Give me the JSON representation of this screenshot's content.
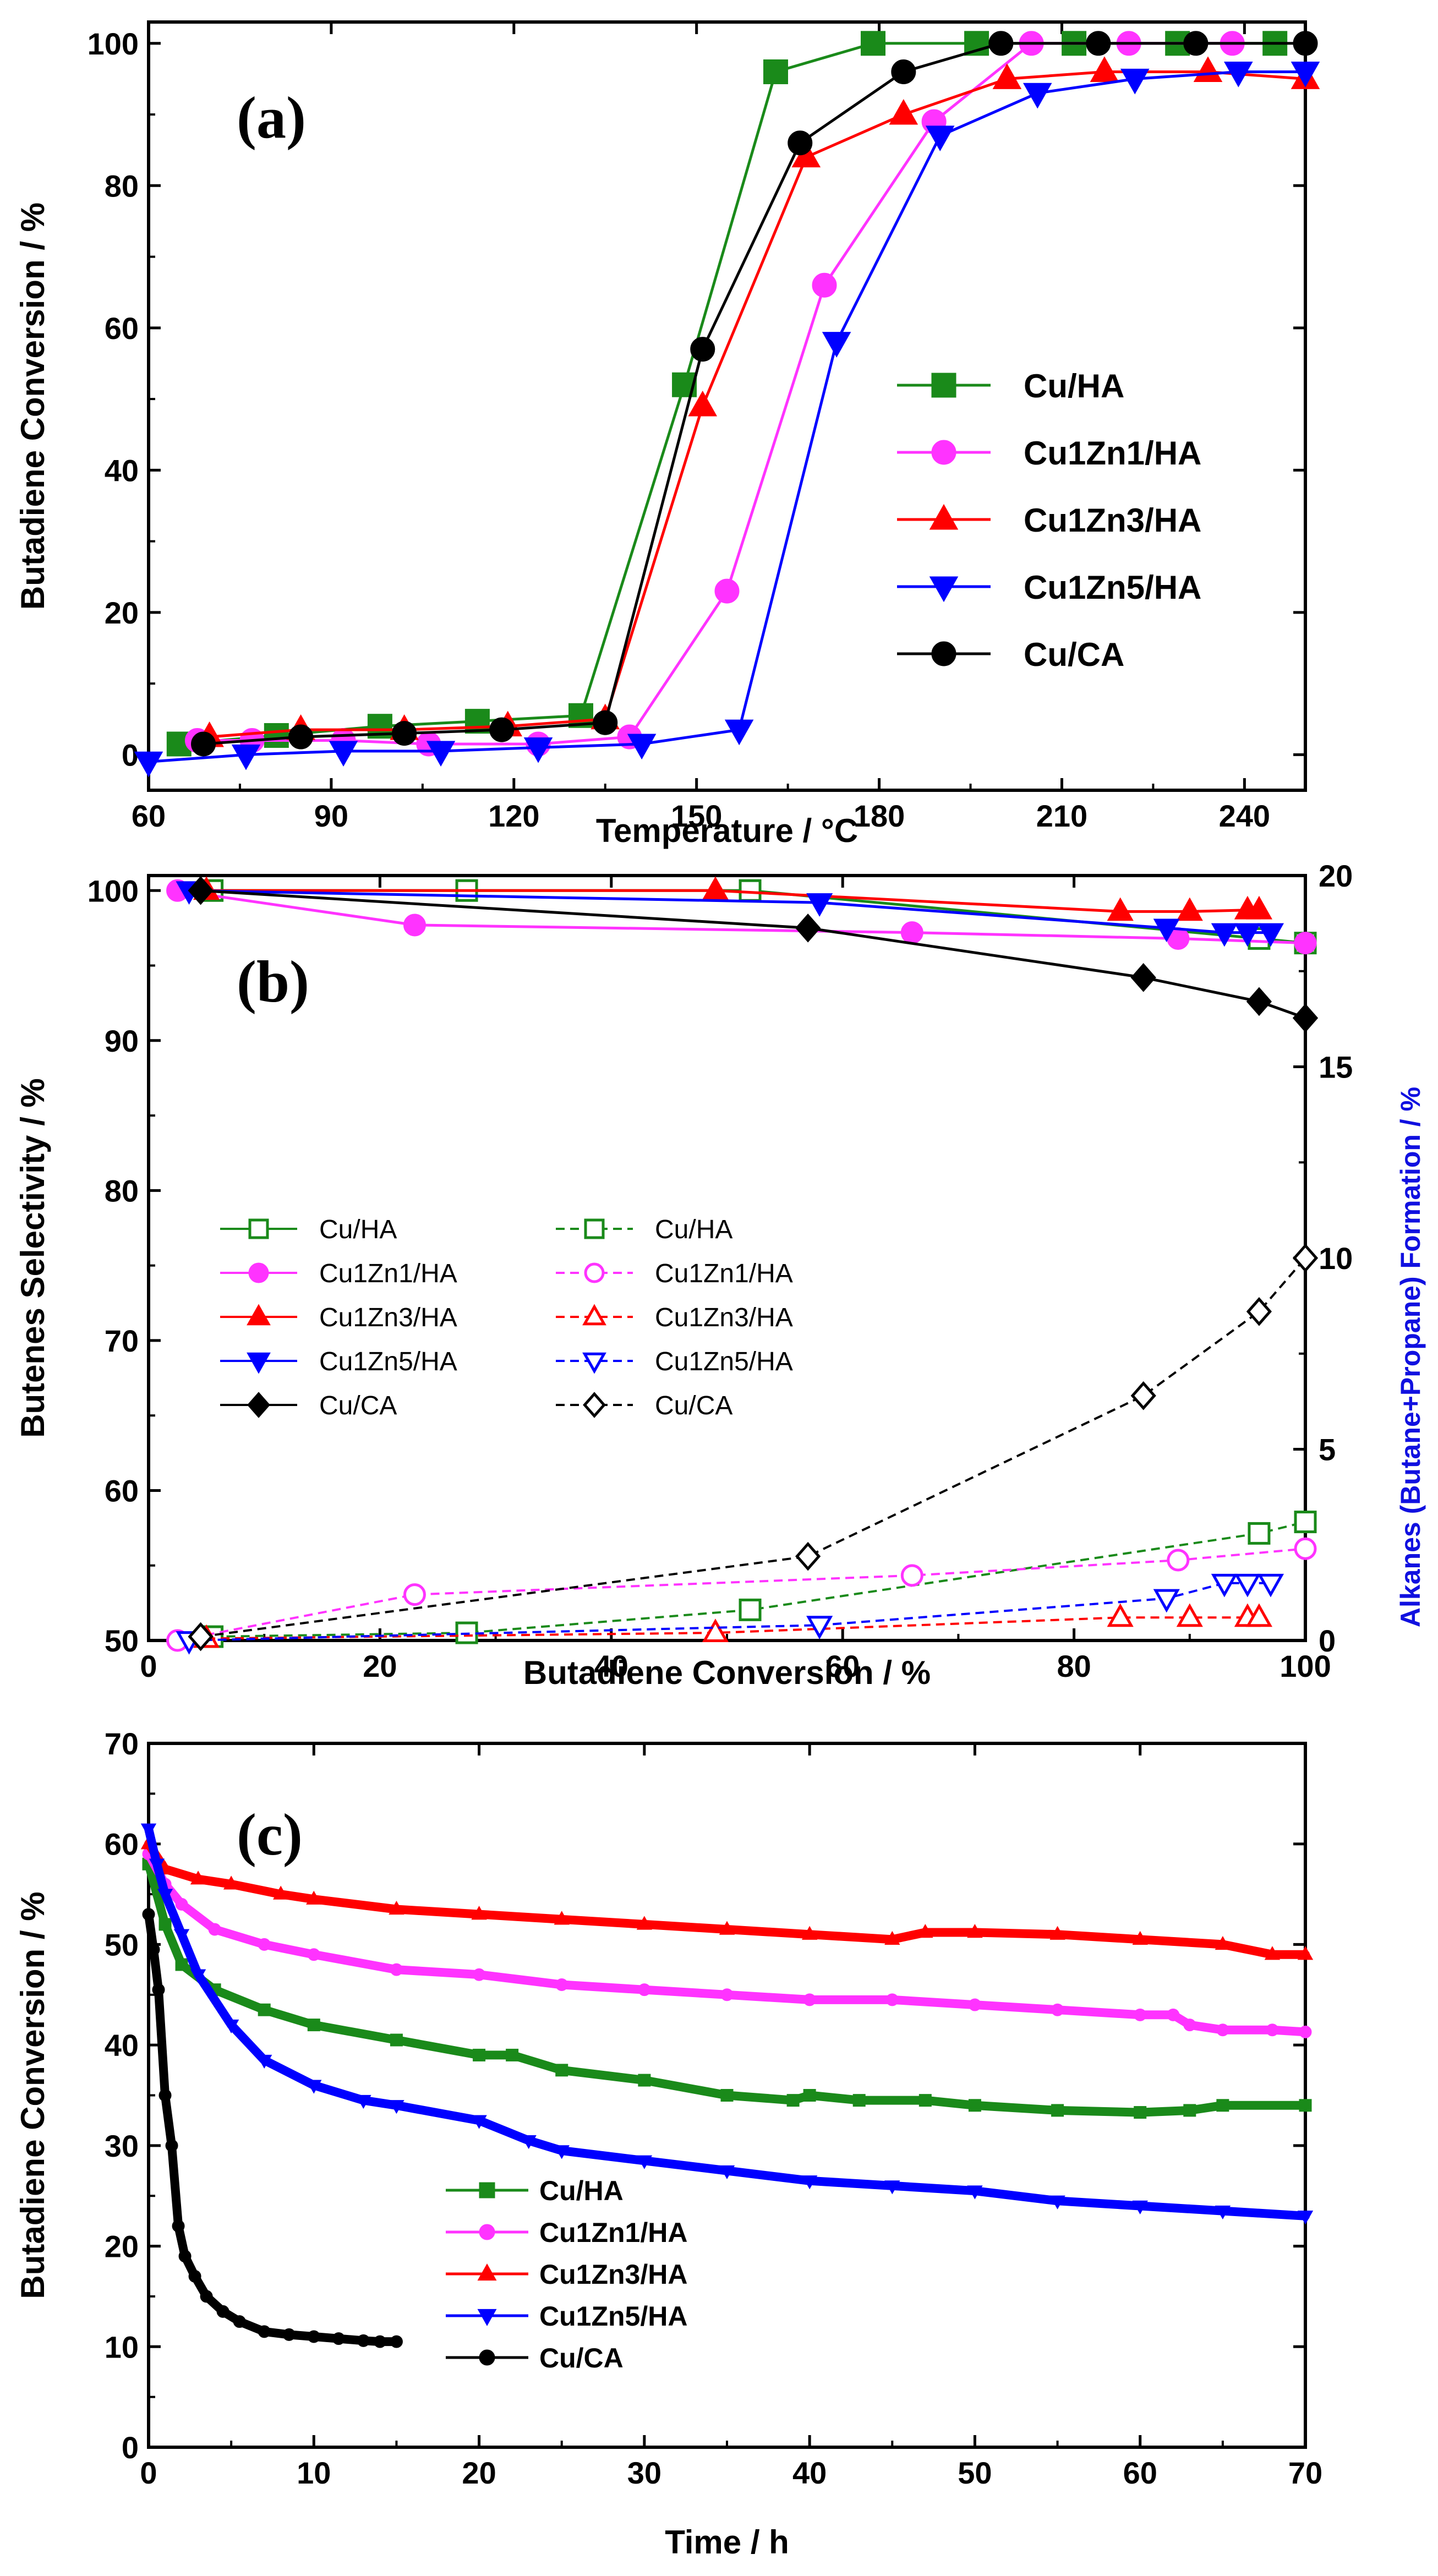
{
  "figure": {
    "panels": [
      "(a)",
      "(b)",
      "(c)"
    ]
  },
  "colors": {
    "Cu/HA": "#1a8a1a",
    "Cu1Zn1/HA": "#ff33ff",
    "Cu1Zn3/HA": "#ff0000",
    "Cu1Zn5/HA": "#0000ff",
    "Cu/CA": "#000000",
    "right_axis": "#1010e0"
  },
  "chart_data": [
    {
      "type": "line",
      "panel": "(a)",
      "xlabel": "Temperature / °C",
      "ylabel": "Butadiene Conversion / %",
      "xlim": [
        60,
        250
      ],
      "ylim": [
        -5,
        103
      ],
      "xticks": [
        60,
        90,
        120,
        150,
        180,
        210,
        240
      ],
      "yticks": [
        0,
        20,
        40,
        60,
        80,
        100
      ],
      "legend": "center-right",
      "series": [
        {
          "name": "Cu/HA",
          "marker": "square",
          "x": [
            65,
            81,
            98,
            114,
            131,
            148,
            163,
            179,
            196,
            212,
            229,
            245
          ],
          "y": [
            1.5,
            2.7,
            4,
            4.7,
            5.5,
            52,
            96,
            100,
            100,
            100,
            100,
            100
          ]
        },
        {
          "name": "Cu1Zn1/HA",
          "marker": "circle",
          "x": [
            68,
            77,
            92,
            106,
            124,
            139,
            155,
            171,
            189,
            205,
            221,
            238
          ],
          "y": [
            2,
            2,
            2,
            1.5,
            1.5,
            2.5,
            23,
            66,
            89,
            100,
            100,
            100
          ]
        },
        {
          "name": "Cu1Zn3/HA",
          "marker": "triangle-up",
          "x": [
            70,
            85,
            102,
            119,
            135,
            151,
            168,
            184,
            201,
            217,
            234,
            250
          ],
          "y": [
            2.5,
            3.5,
            3.5,
            4,
            5,
            49,
            84,
            90,
            95,
            96,
            96,
            95
          ]
        },
        {
          "name": "Cu1Zn5/HA",
          "marker": "triangle-down",
          "x": [
            60,
            76,
            92,
            108,
            124,
            141,
            157,
            173,
            190,
            206,
            222,
            239,
            250
          ],
          "y": [
            -1,
            0,
            0.5,
            0.5,
            1,
            1.5,
            3.5,
            58,
            87,
            93,
            95,
            96,
            96
          ]
        },
        {
          "name": "Cu/CA",
          "marker": "circle",
          "x": [
            69,
            85,
            102,
            118,
            135,
            151,
            167,
            184,
            200,
            216,
            232,
            250
          ],
          "y": [
            1.5,
            2.5,
            3,
            3.5,
            4.5,
            57,
            86,
            96,
            100,
            100,
            100,
            100
          ]
        }
      ]
    },
    {
      "type": "line",
      "panel": "(b)",
      "xlabel": "Butadiene Conversion / %",
      "ylabel": "Butenes Selectivity / %",
      "ylabel_right": "Alkanes (Butane+Propane) Formation / %",
      "xlim": [
        0,
        100
      ],
      "ylim": [
        50,
        101
      ],
      "ylim_right": [
        0,
        20
      ],
      "xticks": [
        0,
        20,
        40,
        60,
        80,
        100
      ],
      "yticks": [
        50,
        60,
        70,
        80,
        90,
        100
      ],
      "yticks_right": [
        0,
        5,
        10,
        15,
        20
      ],
      "legend": "middle-left",
      "series": [
        {
          "name": "Cu/HA",
          "axis": "left",
          "style": "solid",
          "marker": "square-open",
          "x": [
            5.5,
            27.5,
            52,
            96,
            100
          ],
          "y": [
            100,
            100,
            100,
            96.8,
            96.5
          ]
        },
        {
          "name": "Cu1Zn1/HA",
          "axis": "left",
          "style": "solid",
          "marker": "circle-filled",
          "x": [
            2.5,
            23,
            66,
            89,
            100
          ],
          "y": [
            100,
            97.7,
            97.2,
            96.8,
            96.5
          ]
        },
        {
          "name": "Cu1Zn3/HA",
          "axis": "left",
          "style": "solid",
          "marker": "triangle-up-filled",
          "x": [
            5,
            49,
            84,
            90,
            95,
            96
          ],
          "y": [
            100,
            100,
            98.6,
            98.6,
            98.7,
            98.7
          ]
        },
        {
          "name": "Cu1Zn5/HA",
          "axis": "left",
          "style": "solid",
          "marker": "triangle-down-filled",
          "x": [
            3.5,
            58,
            88,
            93,
            95,
            97
          ],
          "y": [
            100,
            99.2,
            97.5,
            97.2,
            97.2,
            97.2
          ]
        },
        {
          "name": "Cu/CA",
          "axis": "left",
          "style": "solid",
          "marker": "diamond-filled",
          "x": [
            4.5,
            57,
            86,
            96,
            100
          ],
          "y": [
            100,
            97.5,
            94.2,
            92.6,
            91.5
          ]
        },
        {
          "name": "Cu/HA",
          "axis": "right",
          "style": "dashed",
          "marker": "square-open",
          "x": [
            5.5,
            27.5,
            52,
            96,
            100
          ],
          "y": [
            0.1,
            0.2,
            0.8,
            2.8,
            3.1
          ]
        },
        {
          "name": "Cu1Zn1/HA",
          "axis": "right",
          "style": "dashed",
          "marker": "circle-open",
          "x": [
            2.5,
            23,
            66,
            89,
            100
          ],
          "y": [
            0,
            1.2,
            1.7,
            2.1,
            2.4
          ]
        },
        {
          "name": "Cu1Zn3/HA",
          "axis": "right",
          "style": "dashed",
          "marker": "triangle-up-open",
          "x": [
            5,
            49,
            84,
            90,
            95,
            96
          ],
          "y": [
            0.05,
            0.2,
            0.6,
            0.6,
            0.6,
            0.6
          ]
        },
        {
          "name": "Cu1Zn5/HA",
          "axis": "right",
          "style": "dashed",
          "marker": "triangle-down-open",
          "x": [
            3.5,
            58,
            88,
            93,
            95,
            97
          ],
          "y": [
            0,
            0.4,
            1.1,
            1.5,
            1.5,
            1.5
          ]
        },
        {
          "name": "Cu/CA",
          "axis": "right",
          "style": "dashed",
          "marker": "diamond-open",
          "x": [
            4.5,
            57,
            86,
            96,
            100
          ],
          "y": [
            0.1,
            2.2,
            6.4,
            8.6,
            10
          ]
        }
      ]
    },
    {
      "type": "line",
      "panel": "(c)",
      "xlabel": "Time / h",
      "ylabel": "Butadiene Conversion / %",
      "xlim": [
        0,
        70
      ],
      "ylim": [
        0,
        70
      ],
      "xticks": [
        0,
        10,
        20,
        30,
        40,
        50,
        60,
        70
      ],
      "yticks": [
        0,
        10,
        20,
        30,
        40,
        50,
        60,
        70
      ],
      "legend": "center-left",
      "series": [
        {
          "name": "Cu/HA",
          "marker": "square-small",
          "x": [
            0,
            1,
            2,
            4,
            7,
            10,
            15,
            20,
            22,
            25,
            30,
            35,
            39,
            40,
            43,
            47,
            50,
            55,
            60,
            63,
            65,
            70
          ],
          "y": [
            58,
            52,
            48,
            45.5,
            43.5,
            42,
            40.5,
            39,
            39,
            37.5,
            36.5,
            35,
            34.5,
            35,
            34.5,
            34.5,
            34,
            33.5,
            33.3,
            33.5,
            34,
            34
          ]
        },
        {
          "name": "Cu1Zn1/HA",
          "marker": "circle-small",
          "x": [
            0,
            1,
            2,
            4,
            7,
            10,
            15,
            20,
            25,
            30,
            35,
            40,
            45,
            50,
            55,
            60,
            62,
            63,
            65,
            68,
            70
          ],
          "y": [
            59,
            56,
            54,
            51.5,
            50,
            49,
            47.5,
            47,
            46,
            45.5,
            45,
            44.5,
            44.5,
            44,
            43.5,
            43,
            43,
            42,
            41.5,
            41.5,
            41.3
          ]
        },
        {
          "name": "Cu1Zn3/HA",
          "marker": "triangle-small",
          "x": [
            0,
            1,
            3,
            5,
            8,
            10,
            15,
            20,
            25,
            30,
            35,
            40,
            45,
            47,
            50,
            55,
            60,
            65,
            68,
            70
          ],
          "y": [
            60,
            57.5,
            56.5,
            56,
            55,
            54.5,
            53.5,
            53,
            52.5,
            52,
            51.5,
            51,
            50.5,
            51.2,
            51.2,
            51,
            50.5,
            50,
            49,
            49
          ]
        },
        {
          "name": "Cu1Zn5/HA",
          "marker": "triangle-down-small",
          "x": [
            0,
            0.5,
            1,
            2,
            3,
            5,
            7,
            10,
            13,
            15,
            20,
            23,
            25,
            30,
            35,
            40,
            45,
            50,
            55,
            60,
            65,
            70
          ],
          "y": [
            61.5,
            58,
            55,
            51,
            47,
            42,
            38.5,
            36,
            34.5,
            34,
            32.5,
            30.5,
            29.5,
            28.5,
            27.5,
            26.5,
            26,
            25.5,
            24.5,
            24,
            23.5,
            23
          ]
        },
        {
          "name": "Cu/CA",
          "marker": "dot",
          "x": [
            0,
            0.3,
            0.6,
            1,
            1.4,
            1.8,
            2.2,
            2.8,
            3.5,
            4.5,
            5.5,
            7,
            8.5,
            10,
            11.5,
            13,
            14,
            15
          ],
          "y": [
            53,
            49.5,
            45.5,
            35,
            30,
            22,
            19,
            17,
            15,
            13.5,
            12.5,
            11.5,
            11.2,
            11,
            10.8,
            10.6,
            10.5,
            10.5
          ]
        }
      ]
    }
  ]
}
